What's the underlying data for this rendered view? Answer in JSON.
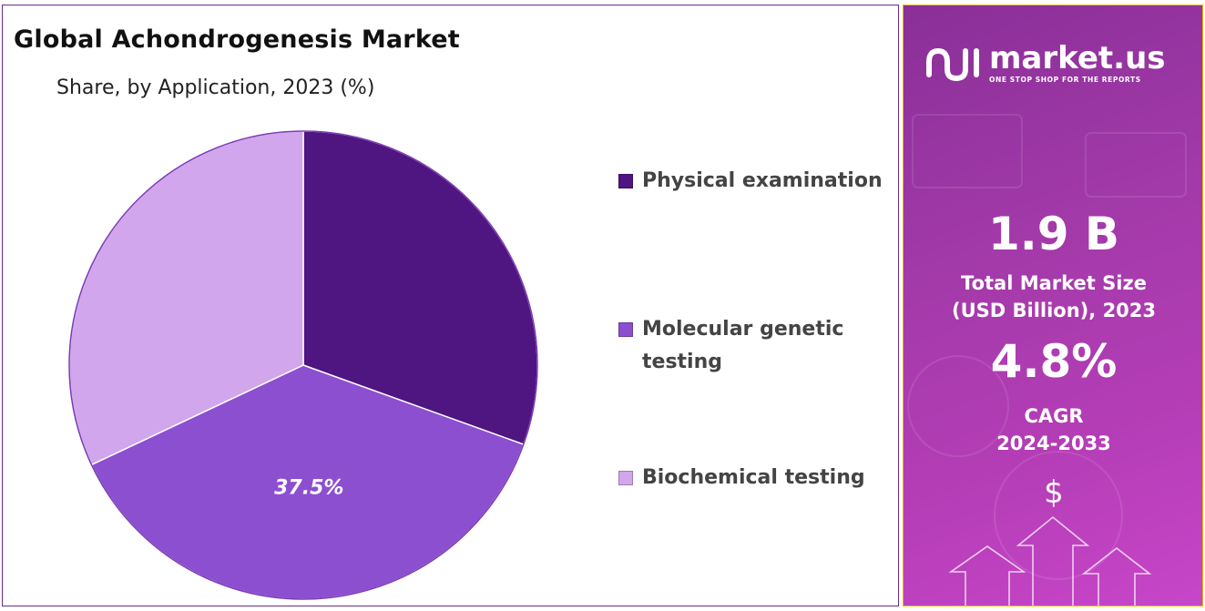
{
  "chart_data": {
    "type": "pie",
    "title": "Global Achondrogenesis Market",
    "subtitle": "Share, by Application, 2023 (%)",
    "slices": [
      {
        "name": "Physical examination",
        "value": 30.5,
        "color": "#4f1580"
      },
      {
        "name": "Molecular genetic testing",
        "value": 37.5,
        "color": "#8c4fd0"
      },
      {
        "name": "Biochemical testing",
        "value": 32.0,
        "color": "#d2a6ed"
      }
    ],
    "data_labels": [
      {
        "series": "Molecular genetic testing",
        "text": "37.5%"
      }
    ],
    "legend_position": "right"
  },
  "legend": {
    "items": [
      {
        "label": "Physical examination",
        "color": "#4f1580"
      },
      {
        "label": "Molecular genetic testing",
        "color": "#8c4fd0"
      },
      {
        "label": "Biochemical testing",
        "color": "#d2a6ed"
      }
    ]
  },
  "brand": {
    "name": "market.us",
    "tagline": "ONE STOP SHOP FOR THE REPORTS",
    "logo_icon": "market-us-logo-icon"
  },
  "stats": {
    "market_size_value": "1.9 B",
    "market_size_label_line1": "Total Market Size",
    "market_size_label_line2": "(USD Billion), 2023",
    "cagr_value": "4.8%",
    "cagr_label_line1": "CAGR",
    "cagr_label_line2": "2024-2033",
    "currency_symbol": "$"
  },
  "colors": {
    "panel_border": "#6b2a8e",
    "side_panel_gradient_start": "#8a2f98",
    "side_panel_gradient_end": "#c746c9",
    "side_panel_border": "#f0b400"
  }
}
